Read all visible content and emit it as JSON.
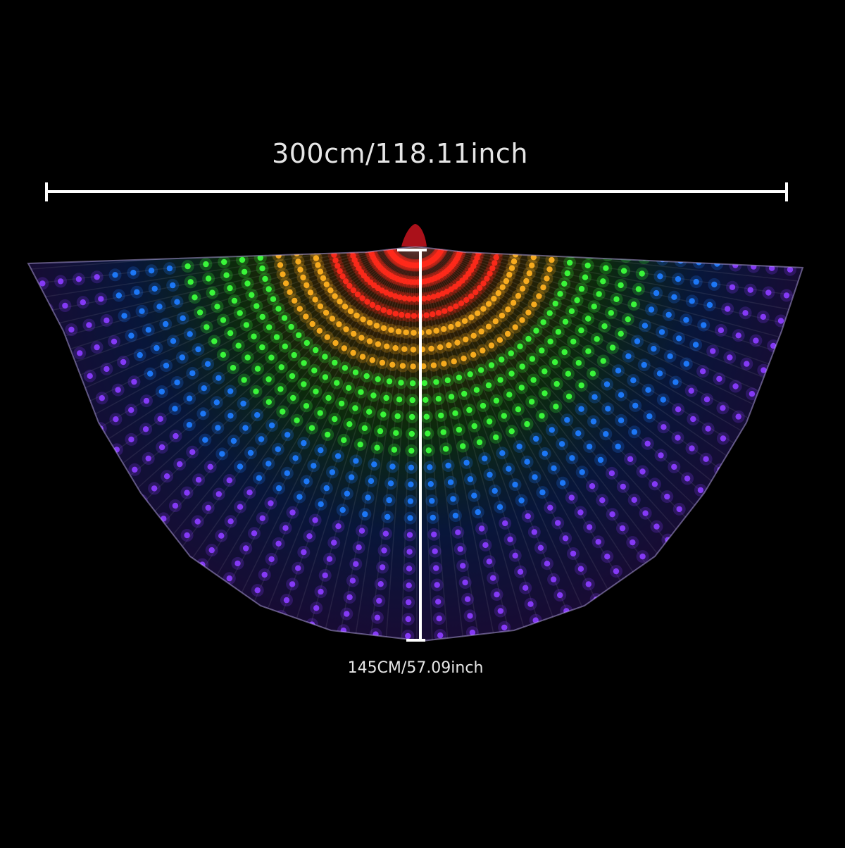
{
  "measurements": {
    "width_label": "300cm/118.11inch",
    "height_label": "145CM/57.09inch"
  },
  "product": {
    "name": "led-rainbow-wings"
  },
  "colors": {
    "background": "#000000",
    "measure_line": "#ffffff",
    "bands": [
      "#ff2a1a",
      "#ffb020",
      "#3cff3c",
      "#1e7cff",
      "#8a3cff"
    ]
  }
}
